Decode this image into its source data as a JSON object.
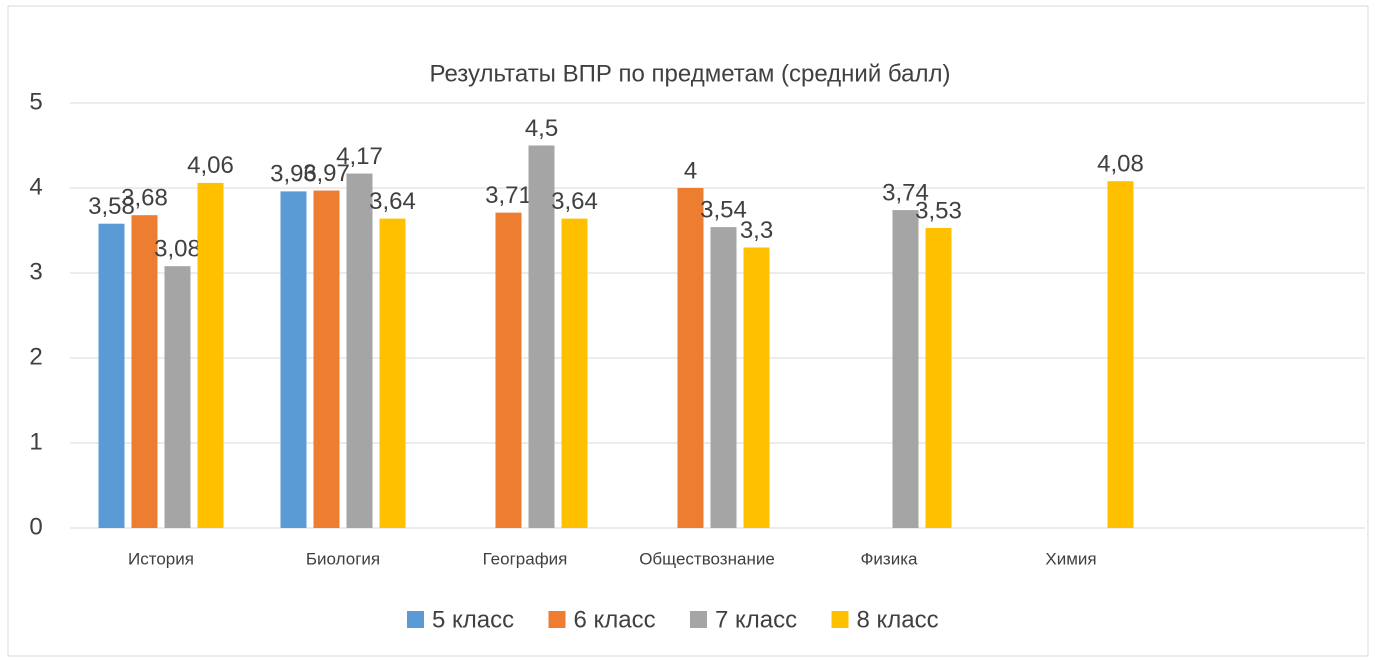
{
  "chart_data": {
    "type": "bar",
    "title": "Результаты ВПР по предметам (средний балл)",
    "categories": [
      "История",
      "Биология",
      "География",
      "Обществознание",
      "Физика",
      "Химия",
      null
    ],
    "series": [
      {
        "name": "5 класс",
        "color": "#5b9bd5",
        "values": [
          3.58,
          3.96,
          null,
          null,
          null,
          null,
          null
        ],
        "value_labels": [
          "3,58",
          "3,96",
          null,
          null,
          null,
          null,
          null
        ]
      },
      {
        "name": "6 класс",
        "color": "#ed7d31",
        "values": [
          3.68,
          3.97,
          3.71,
          4,
          null,
          null,
          null
        ],
        "value_labels": [
          "3,68",
          "3,97",
          "3,71",
          "4",
          null,
          null,
          null
        ]
      },
      {
        "name": "7 класс",
        "color": "#a5a5a5",
        "values": [
          3.08,
          4.17,
          4.5,
          3.54,
          3.74,
          null,
          null
        ],
        "value_labels": [
          "3,08",
          "4,17",
          "4,5",
          "3,54",
          "3,74",
          null,
          null
        ]
      },
      {
        "name": "8 класс",
        "color": "#ffc000",
        "values": [
          4.06,
          3.64,
          3.64,
          3.3,
          3.53,
          4.08,
          null
        ],
        "value_labels": [
          "4,06",
          "3,64",
          "3,64",
          "3,3",
          "3,53",
          "4,08",
          null
        ]
      }
    ],
    "ylim": [
      0,
      5
    ],
    "yticks": [
      0,
      1,
      2,
      3,
      4,
      5
    ],
    "grid": true,
    "legend": "bottom"
  }
}
